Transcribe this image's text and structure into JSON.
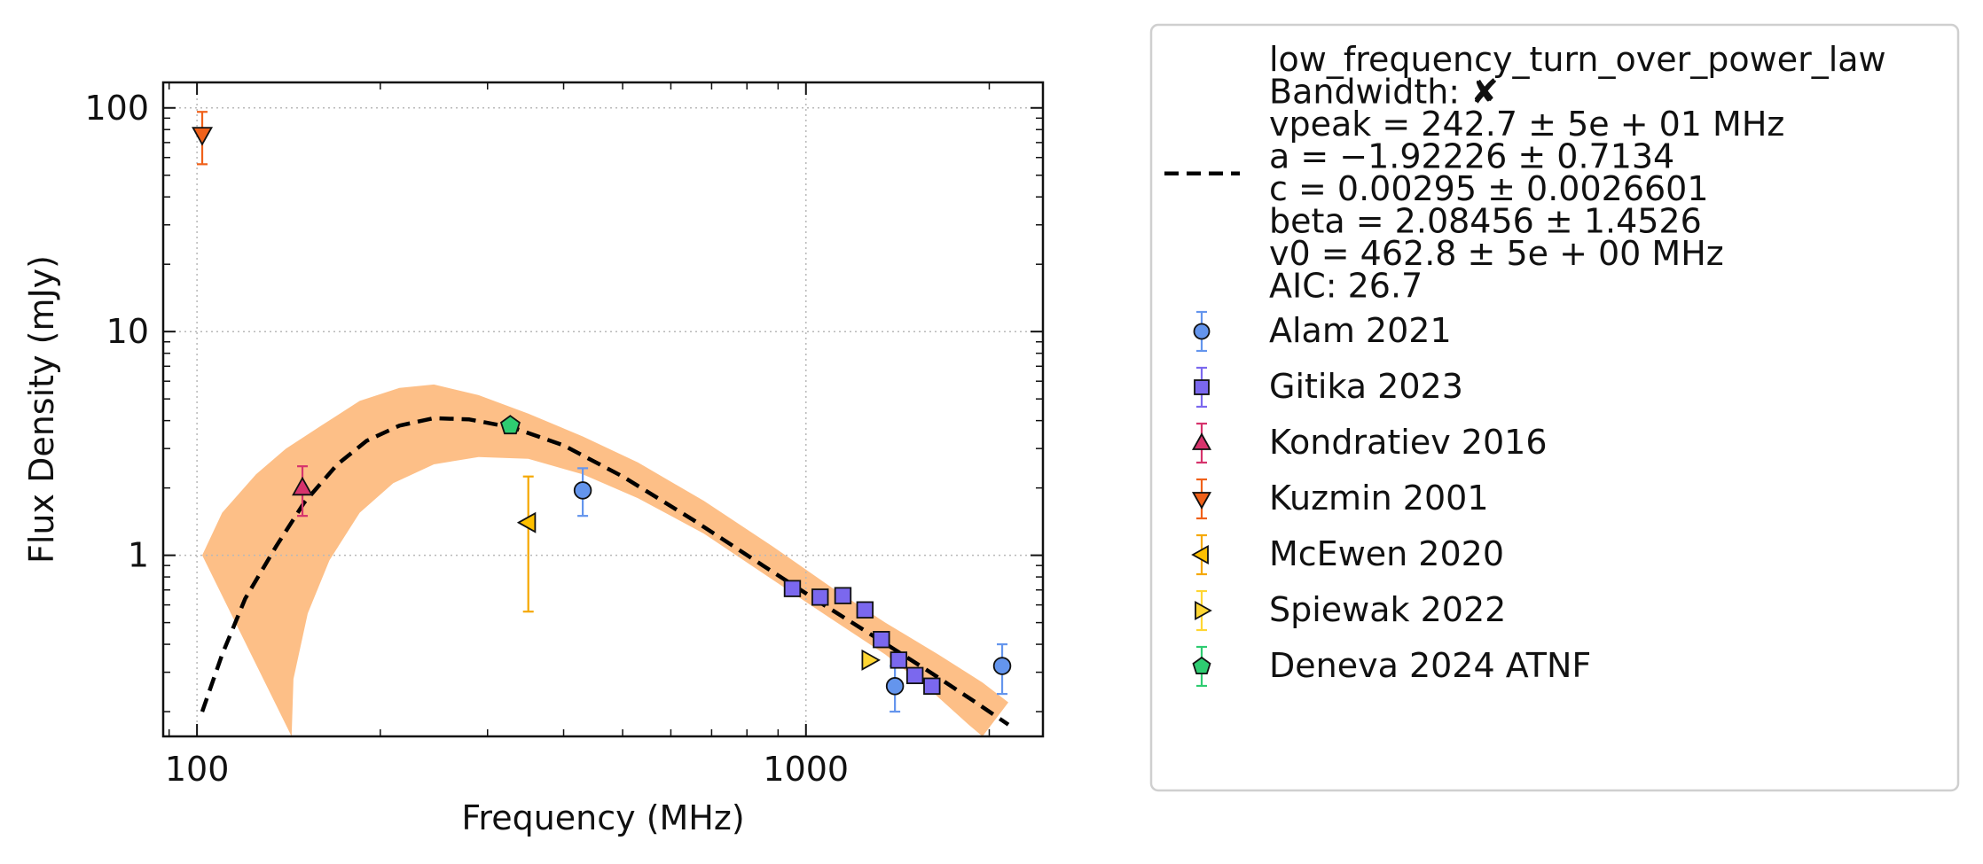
{
  "chart_data": {
    "type": "scatter",
    "xlabel": "Frequency (MHz)",
    "ylabel": "Flux Density (mJy)",
    "xscale": "log",
    "yscale": "log",
    "xlim": [
      88,
      2450
    ],
    "ylim": [
      0.155,
      130
    ],
    "x_ticks": [
      {
        "value": 100,
        "label": "100"
      },
      {
        "value": 1000,
        "label": "1000"
      }
    ],
    "y_ticks": [
      {
        "value": 1,
        "label": "1"
      },
      {
        "value": 10,
        "label": "10"
      },
      {
        "value": 100,
        "label": "100"
      }
    ],
    "grid": true,
    "legend_position": "outside-right",
    "fit": {
      "name": "low_frequency_turn_over_power_law",
      "legend_lines": [
        "low_frequency_turn_over_power_law",
        "Bandwidth: ✘",
        "vpeak = 242.7 ± 5e + 01 MHz",
        "a = −1.92226 ± 0.7134",
        "c = 0.00295 ± 0.0026601",
        "beta = 2.08456 ± 1.4526",
        "v0 = 462.8 ± 5e + 00 MHz",
        "AIC: 26.7"
      ],
      "line_color": "#000000",
      "band_color": "#fdbf87",
      "curve": [
        {
          "x": 102,
          "y": 0.2
        },
        {
          "x": 110,
          "y": 0.36
        },
        {
          "x": 120,
          "y": 0.64
        },
        {
          "x": 135,
          "y": 1.1
        },
        {
          "x": 150,
          "y": 1.72
        },
        {
          "x": 170,
          "y": 2.55
        },
        {
          "x": 190,
          "y": 3.25
        },
        {
          "x": 215,
          "y": 3.8
        },
        {
          "x": 245,
          "y": 4.1
        },
        {
          "x": 280,
          "y": 4.05
        },
        {
          "x": 330,
          "y": 3.72
        },
        {
          "x": 400,
          "y": 3.1
        },
        {
          "x": 500,
          "y": 2.25
        },
        {
          "x": 650,
          "y": 1.45
        },
        {
          "x": 850,
          "y": 0.9
        },
        {
          "x": 1050,
          "y": 0.62
        },
        {
          "x": 1300,
          "y": 0.43
        },
        {
          "x": 1600,
          "y": 0.3
        },
        {
          "x": 1900,
          "y": 0.22
        },
        {
          "x": 2150,
          "y": 0.175
        }
      ],
      "band_upper": [
        {
          "x": 102,
          "y": 1.0
        },
        {
          "x": 110,
          "y": 1.55
        },
        {
          "x": 125,
          "y": 2.3
        },
        {
          "x": 140,
          "y": 3.0
        },
        {
          "x": 160,
          "y": 3.8
        },
        {
          "x": 185,
          "y": 4.9
        },
        {
          "x": 215,
          "y": 5.6
        },
        {
          "x": 245,
          "y": 5.8
        },
        {
          "x": 290,
          "y": 5.2
        },
        {
          "x": 350,
          "y": 4.3
        },
        {
          "x": 430,
          "y": 3.4
        },
        {
          "x": 530,
          "y": 2.6
        },
        {
          "x": 680,
          "y": 1.75
        },
        {
          "x": 880,
          "y": 1.1
        },
        {
          "x": 1100,
          "y": 0.72
        },
        {
          "x": 1350,
          "y": 0.5
        },
        {
          "x": 1650,
          "y": 0.36
        },
        {
          "x": 1950,
          "y": 0.27
        },
        {
          "x": 2150,
          "y": 0.22
        }
      ],
      "band_lower": [
        {
          "x": 143,
          "y": 0.155
        },
        {
          "x": 144,
          "y": 0.28
        },
        {
          "x": 152,
          "y": 0.55
        },
        {
          "x": 165,
          "y": 0.95
        },
        {
          "x": 185,
          "y": 1.55
        },
        {
          "x": 210,
          "y": 2.1
        },
        {
          "x": 245,
          "y": 2.55
        },
        {
          "x": 290,
          "y": 2.75
        },
        {
          "x": 350,
          "y": 2.7
        },
        {
          "x": 430,
          "y": 2.3
        },
        {
          "x": 530,
          "y": 1.8
        },
        {
          "x": 680,
          "y": 1.25
        },
        {
          "x": 880,
          "y": 0.78
        },
        {
          "x": 1100,
          "y": 0.52
        },
        {
          "x": 1350,
          "y": 0.36
        },
        {
          "x": 1600,
          "y": 0.25
        },
        {
          "x": 1850,
          "y": 0.175
        },
        {
          "x": 1950,
          "y": 0.155
        }
      ]
    },
    "series": [
      {
        "name": "Alam 2021",
        "marker": "circle",
        "color": "#6495ed",
        "err_color": "#6495ed",
        "points": [
          {
            "x": 430,
            "y": 1.95,
            "ylo": 1.5,
            "yhi": 2.45
          },
          {
            "x": 1400,
            "y": 0.26,
            "ylo": 0.2,
            "yhi": 0.32
          },
          {
            "x": 2100,
            "y": 0.32,
            "ylo": 0.24,
            "yhi": 0.4
          }
        ]
      },
      {
        "name": "Gitika 2023",
        "marker": "square",
        "color": "#7b68ee",
        "err_color": "#7b68ee",
        "points": [
          {
            "x": 950,
            "y": 0.71,
            "ylo": 0.7,
            "yhi": 0.72
          },
          {
            "x": 1055,
            "y": 0.65,
            "ylo": 0.64,
            "yhi": 0.66
          },
          {
            "x": 1150,
            "y": 0.66,
            "ylo": 0.65,
            "yhi": 0.67
          },
          {
            "x": 1250,
            "y": 0.57,
            "ylo": 0.56,
            "yhi": 0.58
          },
          {
            "x": 1330,
            "y": 0.42,
            "ylo": 0.41,
            "yhi": 0.43
          },
          {
            "x": 1420,
            "y": 0.34,
            "ylo": 0.33,
            "yhi": 0.35
          },
          {
            "x": 1510,
            "y": 0.29,
            "ylo": 0.28,
            "yhi": 0.3
          },
          {
            "x": 1610,
            "y": 0.26,
            "ylo": 0.255,
            "yhi": 0.265
          }
        ]
      },
      {
        "name": "Kondratiev 2016",
        "marker": "triangle-up",
        "color": "#d6336c",
        "err_color": "#d6336c",
        "points": [
          {
            "x": 149,
            "y": 2.0,
            "ylo": 1.5,
            "yhi": 2.5
          }
        ]
      },
      {
        "name": "Kuzmin 2001",
        "marker": "triangle-down",
        "color": "#f0611a",
        "err_color": "#f0611a",
        "points": [
          {
            "x": 102,
            "y": 76,
            "ylo": 56,
            "yhi": 96
          }
        ]
      },
      {
        "name": "McEwen 2020",
        "marker": "triangle-left",
        "color": "#ffc000",
        "err_color": "#f5a800",
        "points": [
          {
            "x": 350,
            "y": 1.4,
            "ylo": 0.56,
            "yhi": 2.25
          }
        ]
      },
      {
        "name": "Spiewak 2022",
        "marker": "triangle-right",
        "color": "#ffd633",
        "err_color": "#ffd633",
        "points": [
          {
            "x": 1270,
            "y": 0.34,
            "ylo": 0.34,
            "yhi": 0.34
          }
        ]
      },
      {
        "name": "Deneva 2024 ATNF",
        "marker": "pentagon",
        "color": "#2ecc71",
        "err_color": "#2ecc71",
        "points": [
          {
            "x": 327,
            "y": 3.8,
            "ylo": 3.8,
            "yhi": 3.8
          }
        ]
      }
    ]
  }
}
